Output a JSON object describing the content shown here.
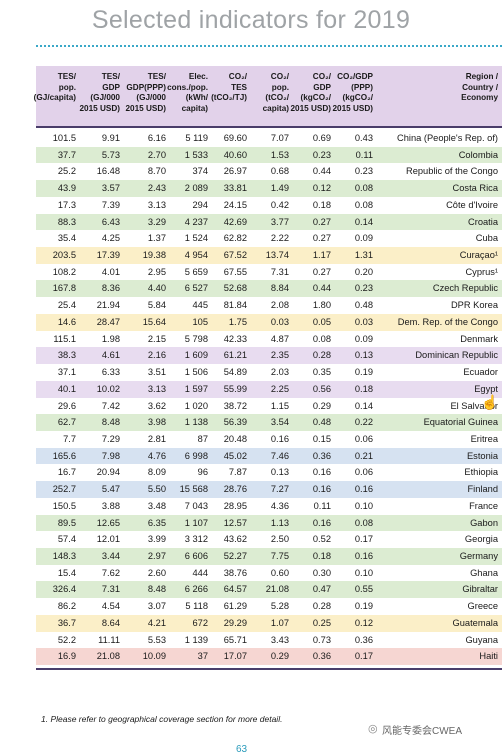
{
  "title": "Selected indicators for 2019",
  "headers": [
    [
      "TES/",
      "pop.",
      "(GJ/capita)"
    ],
    [
      "TES/",
      "GDP",
      "(GJ/000",
      "2015 USD)"
    ],
    [
      "TES/",
      "GDP(PPP)",
      "(GJ/000",
      "2015 USD)"
    ],
    [
      "Elec.",
      "cons./pop.",
      "(kWh/",
      "capita)"
    ],
    [
      "CO₂/",
      "TES",
      "(tCO₂/TJ)"
    ],
    [
      "CO₂/",
      "pop.",
      "(tCO₂/",
      "capita)"
    ],
    [
      "CO₂/",
      "GDP",
      "(kgCO₂/",
      "2015 USD)"
    ],
    [
      "CO₂/GDP",
      "(PPP)",
      "(kgCO₂/",
      "2015 USD)"
    ],
    [
      "Region /",
      "Country /",
      "Economy"
    ]
  ],
  "rows": [
    {
      "v": [
        "101.5",
        "9.91",
        "6.16",
        "5 119",
        "69.60",
        "7.07",
        "0.69",
        "0.43"
      ],
      "name": "China (People's Rep. of)",
      "color": "#ffffff"
    },
    {
      "v": [
        "37.7",
        "5.73",
        "2.70",
        "1 533",
        "40.60",
        "1.53",
        "0.23",
        "0.11"
      ],
      "name": "Colombia",
      "color": "#dcecd2"
    },
    {
      "v": [
        "25.2",
        "16.48",
        "8.70",
        "374",
        "26.97",
        "0.68",
        "0.44",
        "0.23"
      ],
      "name": "Republic of the Congo",
      "color": "#ffffff"
    },
    {
      "v": [
        "43.9",
        "3.57",
        "2.43",
        "2 089",
        "33.81",
        "1.49",
        "0.12",
        "0.08"
      ],
      "name": "Costa Rica",
      "color": "#dcecd2"
    },
    {
      "v": [
        "17.3",
        "7.39",
        "3.13",
        "294",
        "24.15",
        "0.42",
        "0.18",
        "0.08"
      ],
      "name": "Côte d'Ivoire",
      "color": "#ffffff"
    },
    {
      "v": [
        "88.3",
        "6.43",
        "3.29",
        "4 237",
        "42.69",
        "3.77",
        "0.27",
        "0.14"
      ],
      "name": "Croatia",
      "color": "#dcecd2"
    },
    {
      "v": [
        "35.4",
        "4.25",
        "1.37",
        "1 524",
        "62.82",
        "2.22",
        "0.27",
        "0.09"
      ],
      "name": "Cuba",
      "color": "#ffffff"
    },
    {
      "v": [
        "203.5",
        "17.39",
        "19.38",
        "4 954",
        "67.52",
        "13.74",
        "1.17",
        "1.31"
      ],
      "name": "Curaçao¹",
      "color": "#fbefc8"
    },
    {
      "v": [
        "108.2",
        "4.01",
        "2.95",
        "5 659",
        "67.55",
        "7.31",
        "0.27",
        "0.20"
      ],
      "name": "Cyprus¹",
      "color": "#ffffff"
    },
    {
      "v": [
        "167.8",
        "8.36",
        "4.40",
        "6 527",
        "52.68",
        "8.84",
        "0.44",
        "0.23"
      ],
      "name": "Czech Republic",
      "color": "#dcecd2"
    },
    {
      "v": [
        "25.4",
        "21.94",
        "5.84",
        "445",
        "81.84",
        "2.08",
        "1.80",
        "0.48"
      ],
      "name": "DPR Korea",
      "color": "#ffffff"
    },
    {
      "v": [
        "14.6",
        "28.47",
        "15.64",
        "105",
        "1.75",
        "0.03",
        "0.05",
        "0.03"
      ],
      "name": "Dem. Rep. of the Congo",
      "color": "#fbefc8"
    },
    {
      "v": [
        "115.1",
        "1.98",
        "2.15",
        "5 798",
        "42.33",
        "4.87",
        "0.08",
        "0.09"
      ],
      "name": "Denmark",
      "color": "#ffffff"
    },
    {
      "v": [
        "38.3",
        "4.61",
        "2.16",
        "1 609",
        "61.21",
        "2.35",
        "0.28",
        "0.13"
      ],
      "name": "Dominican Republic",
      "color": "#e8dcf0"
    },
    {
      "v": [
        "37.1",
        "6.33",
        "3.51",
        "1 506",
        "54.89",
        "2.03",
        "0.35",
        "0.19"
      ],
      "name": "Ecuador",
      "color": "#ffffff"
    },
    {
      "v": [
        "40.1",
        "10.02",
        "3.13",
        "1 597",
        "55.99",
        "2.25",
        "0.56",
        "0.18"
      ],
      "name": "Egypt",
      "color": "#e8dcf0"
    },
    {
      "v": [
        "29.6",
        "7.42",
        "3.62",
        "1 020",
        "38.72",
        "1.15",
        "0.29",
        "0.14"
      ],
      "name": "El Salvador",
      "color": "#ffffff"
    },
    {
      "v": [
        "62.7",
        "8.48",
        "3.98",
        "1 138",
        "56.39",
        "3.54",
        "0.48",
        "0.22"
      ],
      "name": "Equatorial Guinea",
      "color": "#dcecd2"
    },
    {
      "v": [
        "7.7",
        "7.29",
        "2.81",
        "87",
        "20.48",
        "0.16",
        "0.15",
        "0.06"
      ],
      "name": "Eritrea",
      "color": "#ffffff"
    },
    {
      "v": [
        "165.6",
        "7.98",
        "4.76",
        "6 998",
        "45.02",
        "7.46",
        "0.36",
        "0.21"
      ],
      "name": "Estonia",
      "color": "#d6e2f1"
    },
    {
      "v": [
        "16.7",
        "20.94",
        "8.09",
        "96",
        "7.87",
        "0.13",
        "0.16",
        "0.06"
      ],
      "name": "Ethiopia",
      "color": "#ffffff"
    },
    {
      "v": [
        "252.7",
        "5.47",
        "5.50",
        "15 568",
        "28.76",
        "7.27",
        "0.16",
        "0.16"
      ],
      "name": "Finland",
      "color": "#d6e2f1"
    },
    {
      "v": [
        "150.5",
        "3.88",
        "3.48",
        "7 043",
        "28.95",
        "4.36",
        "0.11",
        "0.10"
      ],
      "name": "France",
      "color": "#ffffff"
    },
    {
      "v": [
        "89.5",
        "12.65",
        "6.35",
        "1 107",
        "12.57",
        "1.13",
        "0.16",
        "0.08"
      ],
      "name": "Gabon",
      "color": "#dcecd2"
    },
    {
      "v": [
        "57.4",
        "12.01",
        "3.99",
        "3 312",
        "43.62",
        "2.50",
        "0.52",
        "0.17"
      ],
      "name": "Georgia",
      "color": "#ffffff"
    },
    {
      "v": [
        "148.3",
        "3.44",
        "2.97",
        "6 606",
        "52.27",
        "7.75",
        "0.18",
        "0.16"
      ],
      "name": "Germany",
      "color": "#dcecd2"
    },
    {
      "v": [
        "15.4",
        "7.62",
        "2.60",
        "444",
        "38.76",
        "0.60",
        "0.30",
        "0.10"
      ],
      "name": "Ghana",
      "color": "#ffffff"
    },
    {
      "v": [
        "326.4",
        "7.31",
        "8.48",
        "6 266",
        "64.57",
        "21.08",
        "0.47",
        "0.55"
      ],
      "name": "Gibraltar",
      "color": "#dcecd2"
    },
    {
      "v": [
        "86.2",
        "4.54",
        "3.07",
        "5 118",
        "61.29",
        "5.28",
        "0.28",
        "0.19"
      ],
      "name": "Greece",
      "color": "#ffffff"
    },
    {
      "v": [
        "36.7",
        "8.64",
        "4.21",
        "672",
        "29.29",
        "1.07",
        "0.25",
        "0.12"
      ],
      "name": "Guatemala",
      "color": "#fbefc8"
    },
    {
      "v": [
        "52.2",
        "11.11",
        "5.53",
        "1 139",
        "65.71",
        "3.43",
        "0.73",
        "0.36"
      ],
      "name": "Guyana",
      "color": "#ffffff"
    },
    {
      "v": [
        "16.9",
        "21.08",
        "10.09",
        "37",
        "17.07",
        "0.29",
        "0.36",
        "0.17"
      ],
      "name": "Haiti",
      "color": "#f6d6d2"
    }
  ],
  "footnote": "1. Please refer to geographical coverage section for more detail.",
  "page_number": "63",
  "watermark": "风能专委会CWEA",
  "icons": [
    "wechat-icon",
    "hand-cursor-icon"
  ]
}
